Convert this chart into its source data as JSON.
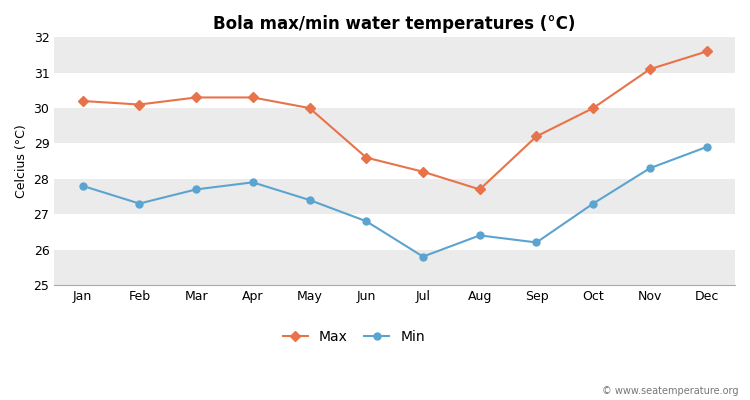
{
  "title": "Bola max/min water temperatures (°C)",
  "ylabel": "Celcius (°C)",
  "months": [
    "Jan",
    "Feb",
    "Mar",
    "Apr",
    "May",
    "Jun",
    "Jul",
    "Aug",
    "Sep",
    "Oct",
    "Nov",
    "Dec"
  ],
  "max_temps": [
    30.2,
    30.1,
    30.3,
    30.3,
    30.0,
    28.6,
    28.2,
    27.7,
    29.2,
    30.0,
    31.1,
    31.6
  ],
  "min_temps": [
    27.8,
    27.3,
    27.7,
    27.9,
    27.4,
    26.8,
    25.8,
    26.4,
    26.2,
    27.3,
    28.3,
    28.9
  ],
  "max_color": "#E8734A",
  "min_color": "#5BA4CF",
  "bg_color": "#ffffff",
  "plot_bg_color": "#ffffff",
  "band_color_light": "#ebebeb",
  "band_color_white": "#ffffff",
  "ylim": [
    25,
    32
  ],
  "yticks": [
    25,
    26,
    27,
    28,
    29,
    30,
    31,
    32
  ],
  "legend_labels": [
    "Max",
    "Min"
  ],
  "watermark": "© www.seatemperature.org",
  "title_fontsize": 12,
  "label_fontsize": 9,
  "tick_fontsize": 9
}
